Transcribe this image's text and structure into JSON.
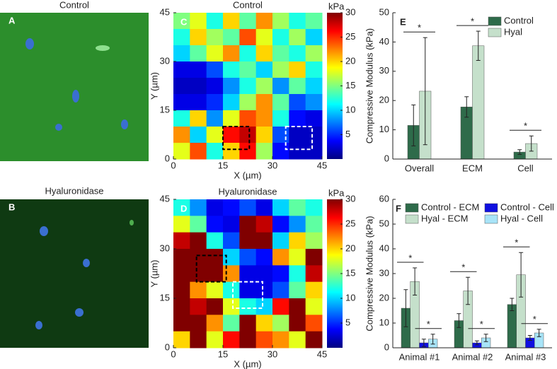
{
  "images": [
    {
      "label": "A",
      "title": "Control"
    },
    {
      "label": "B",
      "title": "Hyaluronidase"
    }
  ],
  "chart_data": [
    {
      "type": "heatmap",
      "panel_label": "C",
      "title": "Control",
      "xlabel": "X (µm)",
      "ylabel": "Y (µm)",
      "xlim": [
        0,
        45
      ],
      "ylim": [
        0,
        45
      ],
      "xticks": [
        0,
        15,
        30,
        45
      ],
      "yticks": [
        0,
        15,
        30,
        45
      ],
      "colorbar": {
        "label": "kPa",
        "lim": [
          0,
          30
        ],
        "ticks": [
          5,
          10,
          15,
          20,
          25,
          30
        ]
      },
      "values": [
        [
          15,
          18,
          12,
          20,
          14,
          22,
          16,
          12,
          14
        ],
        [
          12,
          20,
          16,
          14,
          24,
          18,
          12,
          16,
          10
        ],
        [
          10,
          14,
          18,
          22,
          12,
          20,
          14,
          12,
          16
        ],
        [
          3,
          3,
          6,
          12,
          14,
          10,
          16,
          20,
          12
        ],
        [
          2,
          2,
          3,
          8,
          12,
          16,
          8,
          14,
          10
        ],
        [
          3,
          3,
          5,
          10,
          16,
          22,
          14,
          6,
          8
        ],
        [
          12,
          20,
          8,
          18,
          24,
          22,
          12,
          4,
          3
        ],
        [
          22,
          10,
          18,
          26,
          28,
          20,
          6,
          2,
          2
        ],
        [
          18,
          24,
          12,
          20,
          26,
          16,
          4,
          2,
          2
        ]
      ],
      "regions": [
        {
          "color": "#000000",
          "x": [
            15,
            23
          ],
          "y": [
            3,
            10
          ]
        },
        {
          "color": "#ffffff",
          "x": [
            34,
            42
          ],
          "y": [
            3,
            10
          ]
        }
      ]
    },
    {
      "type": "heatmap",
      "panel_label": "D",
      "title": "Hyaluronidase",
      "xlabel": "X (µm)",
      "ylabel": "Y (µm)",
      "xlim": [
        0,
        45
      ],
      "ylim": [
        0,
        45
      ],
      "xticks": [
        0,
        15,
        30,
        45
      ],
      "yticks": [
        0,
        15,
        30,
        45
      ],
      "colorbar": {
        "label": "kPa",
        "lim": [
          0,
          30
        ],
        "ticks": [
          5,
          10,
          15,
          20,
          25,
          30
        ]
      },
      "values": [
        [
          12,
          8,
          3,
          4,
          6,
          3,
          10,
          14,
          12
        ],
        [
          18,
          14,
          4,
          3,
          30,
          28,
          4,
          8,
          14
        ],
        [
          28,
          30,
          12,
          6,
          30,
          30,
          10,
          20,
          16
        ],
        [
          30,
          30,
          30,
          10,
          6,
          4,
          22,
          18,
          30
        ],
        [
          30,
          30,
          30,
          22,
          3,
          3,
          4,
          12,
          28
        ],
        [
          30,
          22,
          18,
          12,
          3,
          3,
          6,
          14,
          20
        ],
        [
          30,
          28,
          30,
          18,
          12,
          10,
          26,
          30,
          18
        ],
        [
          30,
          30,
          22,
          14,
          30,
          20,
          16,
          30,
          24
        ],
        [
          20,
          30,
          18,
          26,
          30,
          24,
          22,
          18,
          30
        ]
      ],
      "regions": [
        {
          "color": "#000000",
          "x": [
            7,
            16
          ],
          "y": [
            20,
            28
          ]
        },
        {
          "color": "#ffffff",
          "x": [
            18,
            27
          ],
          "y": [
            12,
            20
          ]
        }
      ]
    },
    {
      "type": "bar",
      "panel_label": "E",
      "ylabel": "Compressive Modulus (kPa)",
      "categories": [
        "Overall",
        "ECM",
        "Cell"
      ],
      "series": [
        {
          "name": "Control",
          "color": "#2e6b4a",
          "values": [
            11.5,
            17.8,
            2.4
          ],
          "errors": [
            7,
            3.5,
            0.8
          ]
        },
        {
          "name": "Hyal",
          "color": "#c5e0cb",
          "values": [
            23.2,
            38.7,
            5.3
          ],
          "errors": [
            18.3,
            5,
            2.6
          ]
        }
      ],
      "significance": [
        [
          "*"
        ],
        [
          "*"
        ],
        [
          "*"
        ]
      ],
      "ylim": [
        0,
        50
      ],
      "yticks": [
        0,
        10,
        20,
        30,
        40,
        50
      ],
      "legend": "upper right",
      "legend_ncol": 1
    },
    {
      "type": "bar",
      "panel_label": "F",
      "ylabel": "Compressive Modulus (kPa)",
      "categories": [
        "Animal #1",
        "Animal #2",
        "Animal #3"
      ],
      "series": [
        {
          "name": "Control - ECM",
          "color": "#2e6b4a",
          "values": [
            16,
            11,
            17.5
          ],
          "errors": [
            7.5,
            2.8,
            2.5
          ]
        },
        {
          "name": "Hyal -  ECM",
          "color": "#c5e0cb",
          "values": [
            26.8,
            23,
            29.5
          ],
          "errors": [
            5.5,
            5.5,
            9
          ]
        },
        {
          "name": "Control - Cell",
          "color": "#1010e0",
          "values": [
            2,
            2,
            4
          ],
          "errors": [
            1.5,
            0.8,
            1
          ]
        },
        {
          "name": "Hyal - Cell",
          "color": "#a8e4f8",
          "values": [
            3.5,
            4,
            6
          ],
          "errors": [
            2,
            1.5,
            1.5
          ]
        }
      ],
      "significance": [
        [
          "*",
          "*"
        ],
        [
          "*",
          "*"
        ],
        [
          "*",
          "*"
        ]
      ],
      "ylim": [
        0,
        60
      ],
      "yticks": [
        0,
        10,
        20,
        30,
        40,
        50,
        60
      ],
      "legend": "upper left",
      "legend_ncol": 2
    }
  ]
}
